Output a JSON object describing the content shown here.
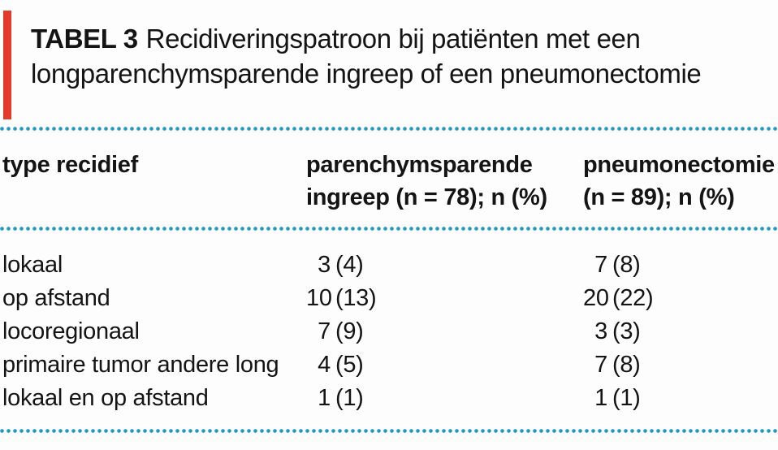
{
  "colors": {
    "accent_red": "#e23b2c",
    "dot_blue": "#2199c4"
  },
  "title": {
    "label": "TABEL 3",
    "line1": "Recidiveringspatroon bij patiënten met een",
    "line2": "longparenchymsparende ingreep of een pneumonectomie"
  },
  "table": {
    "header": {
      "col1": "type recidief",
      "col2_line1": "parenchymsparende",
      "col2_line2": "ingreep (n = 78); n (%)",
      "col3_line1": "pneumonectomie",
      "col3_line2": "(n = 89); n (%)"
    },
    "rows": [
      {
        "label": "lokaal",
        "sparend_n": "3",
        "sparend_pct": "(4)",
        "pneumo_n": "7",
        "pneumo_pct": "(8)"
      },
      {
        "label": "op afstand",
        "sparend_n": "10",
        "sparend_pct": "(13)",
        "pneumo_n": "20",
        "pneumo_pct": "(22)"
      },
      {
        "label": "locoregionaal",
        "sparend_n": "7",
        "sparend_pct": "(9)",
        "pneumo_n": "3",
        "pneumo_pct": "(3)"
      },
      {
        "label": "primaire tumor andere long",
        "sparend_n": "4",
        "sparend_pct": "(5)",
        "pneumo_n": "7",
        "pneumo_pct": "(8)"
      },
      {
        "label": "lokaal en op afstand",
        "sparend_n": "1",
        "sparend_pct": "(1)",
        "pneumo_n": "1",
        "pneumo_pct": "(1)"
      }
    ]
  }
}
